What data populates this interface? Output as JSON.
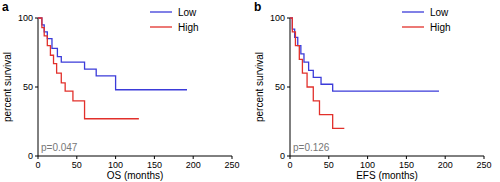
{
  "chart_data": [
    {
      "type": "step",
      "title": "a",
      "x_label": "OS (months)",
      "y_label": "percent survival",
      "xlim": [
        0,
        250
      ],
      "ylim": [
        0,
        100
      ],
      "xticks": [
        0,
        50,
        100,
        150,
        200,
        250
      ],
      "yticks": [
        0,
        50,
        100
      ],
      "grid": false,
      "legend": "upper right",
      "annotations": [
        {
          "text": "p=0.047"
        }
      ],
      "series": [
        {
          "name": "Low",
          "color": "#3b3bd9",
          "x": [
            0,
            5,
            8,
            12,
            18,
            25,
            30,
            60,
            75,
            100,
            192
          ],
          "values": [
            100,
            95,
            90,
            85,
            78,
            72,
            68,
            63,
            58,
            48,
            48
          ]
        },
        {
          "name": "High",
          "color": "#e2302b",
          "x": [
            0,
            5,
            8,
            12,
            16,
            20,
            24,
            30,
            35,
            45,
            60,
            130
          ],
          "values": [
            100,
            93,
            87,
            80,
            73,
            67,
            60,
            53,
            47,
            40,
            27,
            27
          ]
        }
      ]
    },
    {
      "type": "step",
      "title": "b",
      "x_label": "EFS (months)",
      "y_label": "percent survival",
      "xlim": [
        0,
        250
      ],
      "ylim": [
        0,
        100
      ],
      "xticks": [
        0,
        50,
        100,
        150,
        200,
        250
      ],
      "yticks": [
        0,
        50,
        100
      ],
      "grid": false,
      "legend": "upper right",
      "annotations": [
        {
          "text": "p=0.126"
        }
      ],
      "series": [
        {
          "name": "Low",
          "color": "#3b3bd9",
          "x": [
            0,
            3,
            6,
            10,
            14,
            18,
            24,
            30,
            40,
            55,
            192
          ],
          "values": [
            100,
            92,
            86,
            80,
            74,
            68,
            62,
            57,
            52,
            47,
            47
          ]
        },
        {
          "name": "High",
          "color": "#e2302b",
          "x": [
            0,
            3,
            7,
            12,
            16,
            22,
            30,
            38,
            55,
            70
          ],
          "values": [
            100,
            90,
            80,
            70,
            60,
            50,
            40,
            30,
            20,
            20
          ]
        }
      ]
    }
  ]
}
